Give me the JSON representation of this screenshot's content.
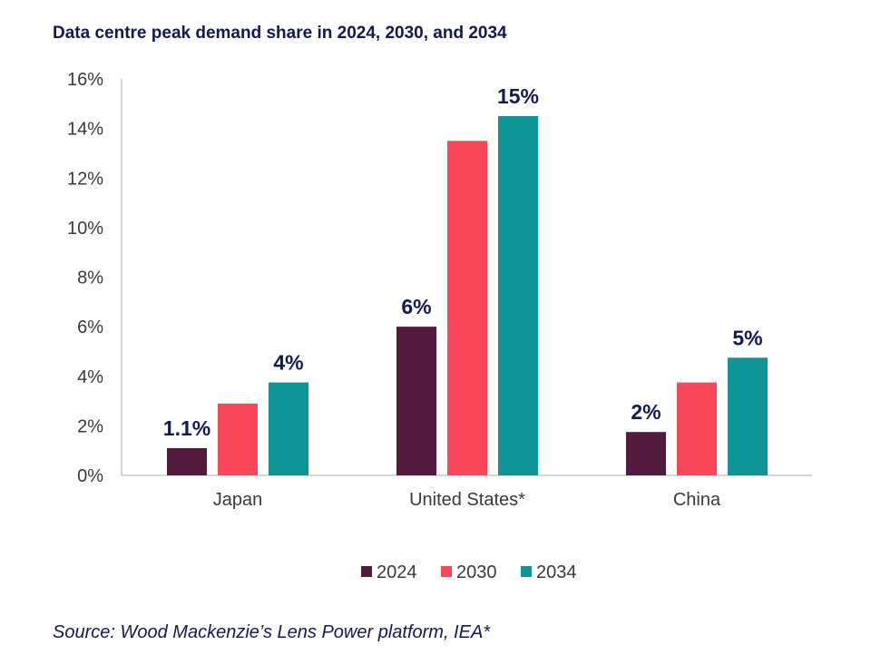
{
  "chart_data": {
    "type": "bar",
    "title": "Data centre peak demand share in 2024, 2030, and 2034",
    "categories": [
      "Japan",
      "United States*",
      "China"
    ],
    "series": [
      {
        "name": "2024",
        "color": "#521a3c",
        "values": [
          1.1,
          6.0,
          1.75
        ]
      },
      {
        "name": "2030",
        "color": "#f9475a",
        "values": [
          2.9,
          13.5,
          3.75
        ]
      },
      {
        "name": "2034",
        "color": "#0e9696",
        "values": [
          3.75,
          14.5,
          4.75
        ]
      }
    ],
    "data_labels": [
      {
        "category": "Japan",
        "series": "2024",
        "text": "1.1%"
      },
      {
        "category": "Japan",
        "series": "2034",
        "text": "4%"
      },
      {
        "category": "United States*",
        "series": "2024",
        "text": "6%"
      },
      {
        "category": "United States*",
        "series": "2034",
        "text": "15%"
      },
      {
        "category": "China",
        "series": "2024",
        "text": "2%"
      },
      {
        "category": "China",
        "series": "2034",
        "text": "5%"
      }
    ],
    "y_ticks": [
      "0%",
      "2%",
      "4%",
      "6%",
      "8%",
      "10%",
      "12%",
      "14%",
      "16%"
    ],
    "ylim": [
      0,
      16
    ],
    "xlabel": "",
    "ylabel": "",
    "grid": false,
    "legend_position": "bottom"
  },
  "source": "Source: Wood Mackenzie’s Lens Power platform, IEA*"
}
